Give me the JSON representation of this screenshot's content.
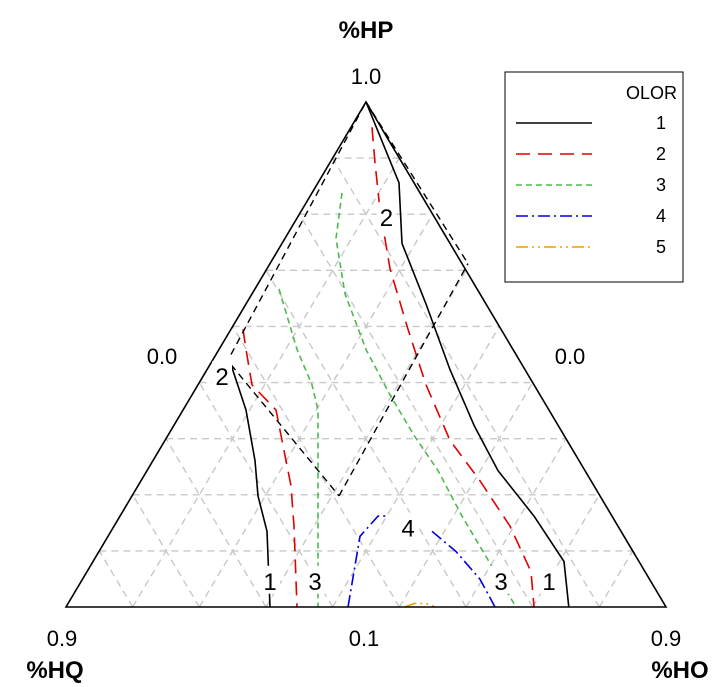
{
  "chart_data": {
    "type": "ternary_contour",
    "grid": true,
    "axes": {
      "top": {
        "label": "%HP",
        "tick": "1.0"
      },
      "left": {
        "label": "%HQ",
        "tick": "0.9",
        "side_tick": "0.0"
      },
      "right": {
        "label": "%HO",
        "tick": "0.9",
        "side_tick": "0.0"
      },
      "bottom_mid_tick": "0.1"
    },
    "legend": {
      "title": "OLOR",
      "position": "top-right",
      "entries": [
        {
          "label": "1",
          "color": "#000000",
          "dash": "solid"
        },
        {
          "label": "2",
          "color": "#e00000",
          "dash": "long-dash"
        },
        {
          "label": "3",
          "color": "#4cbb4c",
          "dash": "short-dash"
        },
        {
          "label": "4",
          "color": "#0000dd",
          "dash": "dash-dot"
        },
        {
          "label": "5",
          "color": "#f59a00",
          "dash": "dash-dot-dot"
        }
      ]
    },
    "contour_labels": [
      {
        "level": "2",
        "u": 0.534,
        "v": 0.77
      },
      {
        "level": "2",
        "u": 0.26,
        "v": 0.455
      },
      {
        "level": "4",
        "u": 0.57,
        "v": 0.155
      },
      {
        "level": "1",
        "u": 0.34,
        "v": 0.05
      },
      {
        "level": "3",
        "u": 0.415,
        "v": 0.05
      },
      {
        "level": "3",
        "u": 0.725,
        "v": 0.05
      },
      {
        "level": "1",
        "u": 0.805,
        "v": 0.05
      }
    ],
    "contours": [
      {
        "level": 1,
        "points": [
          [
            0.5,
            1.0
          ],
          [
            0.555,
            0.84
          ],
          [
            0.56,
            0.72
          ],
          [
            0.6,
            0.6
          ],
          [
            0.64,
            0.47
          ],
          [
            0.68,
            0.36
          ],
          [
            0.72,
            0.27
          ],
          [
            0.78,
            0.18
          ],
          [
            0.83,
            0.09
          ],
          [
            0.838,
            0.0
          ]
        ]
      },
      {
        "level": 1,
        "points": [
          [
            0.275,
            0.48
          ],
          [
            0.3,
            0.39
          ],
          [
            0.315,
            0.29
          ],
          [
            0.32,
            0.22
          ],
          [
            0.335,
            0.15
          ],
          [
            0.34,
            0.0
          ]
        ]
      },
      {
        "level": 2,
        "points": [
          [
            0.51,
            0.95
          ],
          [
            0.515,
            0.88
          ],
          [
            0.523,
            0.79
          ],
          [
            0.54,
            0.67
          ],
          [
            0.57,
            0.55
          ],
          [
            0.6,
            0.44
          ],
          [
            0.64,
            0.33
          ],
          [
            0.69,
            0.25
          ],
          [
            0.74,
            0.16
          ],
          [
            0.775,
            0.07
          ],
          [
            0.78,
            0.0
          ]
        ]
      },
      {
        "level": 2,
        "points": [
          [
            0.295,
            0.55
          ],
          [
            0.3,
            0.51
          ],
          [
            0.31,
            0.44
          ],
          [
            0.35,
            0.39
          ],
          [
            0.36,
            0.33
          ],
          [
            0.375,
            0.24
          ],
          [
            0.38,
            0.16
          ],
          [
            0.385,
            0.0
          ]
        ]
      },
      {
        "level": 3,
        "points": [
          [
            0.46,
            0.82
          ],
          [
            0.45,
            0.73
          ],
          [
            0.465,
            0.62
          ],
          [
            0.5,
            0.51
          ],
          [
            0.54,
            0.42
          ],
          [
            0.58,
            0.34
          ],
          [
            0.62,
            0.27
          ],
          [
            0.66,
            0.18
          ],
          [
            0.7,
            0.1
          ],
          [
            0.75,
            0.0
          ]
        ]
      },
      {
        "level": 3,
        "points": [
          [
            0.355,
            0.63
          ],
          [
            0.365,
            0.59
          ],
          [
            0.385,
            0.51
          ],
          [
            0.41,
            0.44
          ],
          [
            0.42,
            0.39
          ],
          [
            0.42,
            0.3
          ],
          [
            0.42,
            0.22
          ],
          [
            0.42,
            0.12
          ],
          [
            0.42,
            0.0
          ]
        ]
      },
      {
        "level": 4,
        "points": [
          [
            0.47,
            0.0
          ],
          [
            0.48,
            0.07
          ],
          [
            0.49,
            0.14
          ],
          [
            0.52,
            0.18
          ],
          [
            0.535,
            0.18
          ]
        ]
      },
      {
        "level": 4,
        "points": [
          [
            0.61,
            0.15
          ],
          [
            0.65,
            0.11
          ],
          [
            0.69,
            0.055
          ],
          [
            0.715,
            0.0
          ]
        ]
      },
      {
        "level": 5,
        "points": [
          [
            0.565,
            0.0
          ],
          [
            0.58,
            0.007
          ],
          [
            0.6,
            0.007
          ],
          [
            0.615,
            0.0
          ]
        ]
      }
    ]
  }
}
